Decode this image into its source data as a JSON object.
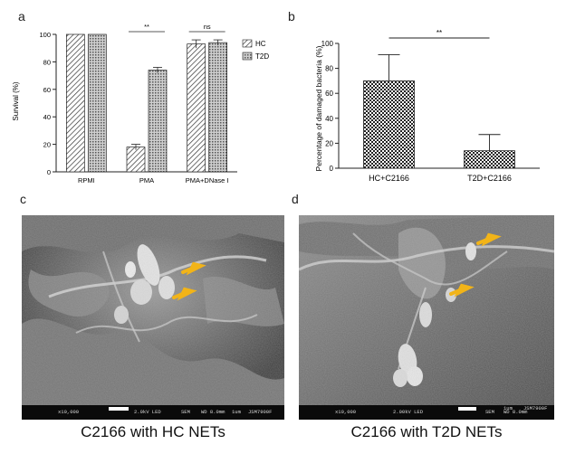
{
  "panel_labels": {
    "a": "a",
    "b": "b",
    "c": "c",
    "d": "d"
  },
  "chart_data": [
    {
      "type": "bar",
      "panel": "a",
      "categories": [
        "RPMI",
        "PMA",
        "PMA+DNase I"
      ],
      "series": [
        {
          "name": "HC",
          "values": [
            100,
            18,
            93
          ],
          "errors": [
            0,
            2,
            3
          ]
        },
        {
          "name": "T2D",
          "values": [
            100,
            74,
            94
          ],
          "errors": [
            0,
            2,
            2
          ]
        }
      ],
      "ylabel": "Survival (%)",
      "ylim": [
        0,
        100
      ],
      "yticks": [
        "0",
        "20",
        "40",
        "60",
        "80",
        "100"
      ],
      "legend_position": "top-right",
      "annotations": [
        {
          "text": "**",
          "between": "PMA HC vs T2D"
        },
        {
          "text": "ns",
          "between": "PMA+DNase I HC vs T2D"
        }
      ],
      "colors": {
        "HC": "#ffffff",
        "T2D": "#b5b5b5",
        "pattern": "#222222"
      }
    },
    {
      "type": "bar",
      "panel": "b",
      "categories": [
        "HC+C2166",
        "T2D+C2166"
      ],
      "values": [
        70,
        14
      ],
      "errors": [
        21,
        13
      ],
      "ylabel": "Percentage of damaged bacteria (%)",
      "ylim": [
        0,
        100
      ],
      "yticks": [
        "0",
        "20",
        "40",
        "60",
        "80",
        "100"
      ],
      "annotations": [
        {
          "text": "**",
          "between": "HC+C2166 vs T2D+C2166"
        }
      ]
    }
  ],
  "images": [
    {
      "panel": "c",
      "caption": "C2166 with HC NETs",
      "sem_info": {
        "left": "x10,000",
        "mid": "2.0kV LED",
        "right1": "SEM",
        "right2": "WD 8.0mm",
        "scale": "1um",
        "device": "JSM7900F"
      },
      "arrow_color": "#f2b418"
    },
    {
      "panel": "d",
      "caption": "C2166 with T2D NETs",
      "sem_info": {
        "left": "x10,000",
        "mid": "2.00kV LED",
        "right1": "SEM",
        "right2": "WD 8.0mm",
        "scale": "1um",
        "device": "JSM7900F"
      },
      "arrow_color": "#f2b418"
    }
  ]
}
